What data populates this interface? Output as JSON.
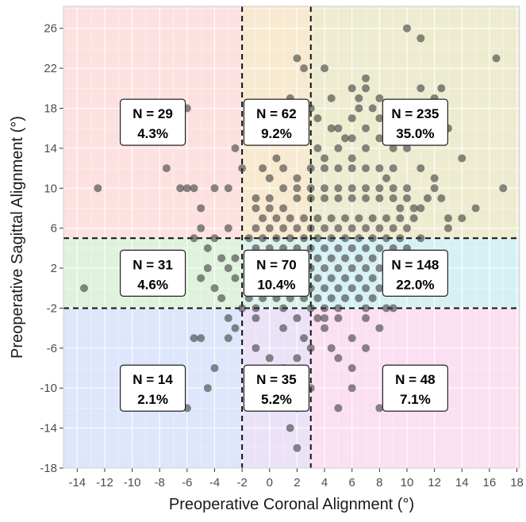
{
  "chart_data": {
    "type": "scatter",
    "title": "",
    "xlabel": "Preoperative Coronal Alignment (°)",
    "ylabel": "Preoperative Sagittal Alignment (°)",
    "xlim": [
      -15,
      18.2
    ],
    "ylim": [
      -18,
      28.2
    ],
    "x_ticks": [
      -14,
      -12,
      -10,
      -8,
      -6,
      -4,
      -2,
      0,
      2,
      4,
      6,
      8,
      10,
      12,
      14,
      16,
      18
    ],
    "y_ticks": [
      -18,
      -14,
      -10,
      -6,
      -2,
      2,
      6,
      10,
      14,
      18,
      22,
      26
    ],
    "grid": true,
    "cutoffs": {
      "x": [
        -2,
        3
      ],
      "y": [
        -2,
        5
      ]
    },
    "regions": [
      {
        "x_range": [
          -15,
          -2
        ],
        "y_range": [
          5,
          28.2
        ],
        "color": "#fde1e1",
        "n_label": "N = 29",
        "pct_label": "4.3%"
      },
      {
        "x_range": [
          -2,
          3
        ],
        "y_range": [
          5,
          28.2
        ],
        "color": "#f8ead0",
        "n_label": "N = 62",
        "pct_label": "9.2%"
      },
      {
        "x_range": [
          3,
          18.2
        ],
        "y_range": [
          5,
          28.2
        ],
        "color": "#eeecd0",
        "n_label": "N = 235",
        "pct_label": "35.0%"
      },
      {
        "x_range": [
          -15,
          -2
        ],
        "y_range": [
          -2,
          5
        ],
        "color": "#dff3dc",
        "n_label": "N = 31",
        "pct_label": "4.6%"
      },
      {
        "x_range": [
          -2,
          3
        ],
        "y_range": [
          -2,
          5
        ],
        "color": "#dcf2ea",
        "n_label": "N = 70",
        "pct_label": "10.4%"
      },
      {
        "x_range": [
          3,
          18.2
        ],
        "y_range": [
          -2,
          5
        ],
        "color": "#d6f1f4",
        "n_label": "N = 148",
        "pct_label": "22.0%"
      },
      {
        "x_range": [
          -15,
          -2
        ],
        "y_range": [
          -18,
          -2
        ],
        "color": "#dde6fa",
        "n_label": "N = 14",
        "pct_label": "2.1%"
      },
      {
        "x_range": [
          -2,
          3
        ],
        "y_range": [
          -18,
          -2
        ],
        "color": "#ebe2f8",
        "n_label": "N = 35",
        "pct_label": "5.2%"
      },
      {
        "x_range": [
          3,
          18.2
        ],
        "y_range": [
          -18,
          -2
        ],
        "color": "#fbe0f1",
        "n_label": "N = 48",
        "pct_label": "7.1%"
      }
    ],
    "point_color": "#3a3a3a",
    "points": [
      [
        -13.5,
        0
      ],
      [
        -12.5,
        10
      ],
      [
        -7.5,
        12
      ],
      [
        -6,
        18
      ],
      [
        -6,
        -12
      ],
      [
        -5.5,
        -5
      ],
      [
        -5,
        -5
      ],
      [
        -4.5,
        -10
      ],
      [
        -4,
        -8
      ],
      [
        -6.5,
        10
      ],
      [
        -6,
        10
      ],
      [
        -5.5,
        10
      ],
      [
        -5,
        8
      ],
      [
        -4,
        10
      ],
      [
        -3,
        10
      ],
      [
        -2.5,
        14
      ],
      [
        -1.5,
        17
      ],
      [
        -2,
        12
      ],
      [
        -3,
        6
      ],
      [
        -5.5,
        5
      ],
      [
        -5,
        6
      ],
      [
        -4.5,
        4
      ],
      [
        -4,
        5
      ],
      [
        -3.5,
        3
      ],
      [
        -3,
        2
      ],
      [
        -2.5,
        1
      ],
      [
        -4,
        0
      ],
      [
        -3.5,
        -1
      ],
      [
        -5,
        1
      ],
      [
        -4.5,
        2
      ],
      [
        -3,
        -3
      ],
      [
        -2.5,
        -4
      ],
      [
        -3,
        -5
      ],
      [
        -2.5,
        3
      ],
      [
        -2,
        -2
      ],
      [
        -1,
        -3
      ],
      [
        -1,
        -6
      ],
      [
        0,
        -7
      ],
      [
        0,
        -9
      ],
      [
        1,
        -8
      ],
      [
        1.5,
        -10
      ],
      [
        2,
        -12
      ],
      [
        1.5,
        -14
      ],
      [
        2,
        -16
      ],
      [
        3,
        -10
      ],
      [
        2,
        -7
      ],
      [
        1,
        -4
      ],
      [
        2,
        -3
      ],
      [
        2.5,
        -5
      ],
      [
        3,
        -6
      ],
      [
        4,
        -4
      ],
      [
        4.5,
        -6
      ],
      [
        5,
        -7
      ],
      [
        6,
        -5
      ],
      [
        7,
        -3
      ],
      [
        8,
        -4
      ],
      [
        9,
        -9
      ],
      [
        8,
        -12
      ],
      [
        5,
        -12
      ],
      [
        6,
        -10
      ],
      [
        6,
        -8
      ],
      [
        7,
        -6
      ],
      [
        5,
        -3
      ],
      [
        4,
        -2
      ],
      [
        4,
        -3
      ],
      [
        3.5,
        -3
      ],
      [
        2,
        23
      ],
      [
        2.5,
        22
      ],
      [
        4,
        22
      ],
      [
        4.5,
        19
      ],
      [
        3.5,
        17
      ],
      [
        2,
        16
      ],
      [
        1.5,
        19
      ],
      [
        0,
        16
      ],
      [
        -0.5,
        15
      ],
      [
        7,
        21
      ],
      [
        7,
        20
      ],
      [
        6.5,
        19
      ],
      [
        6,
        17
      ],
      [
        7.5,
        18
      ],
      [
        8,
        19
      ],
      [
        9,
        17
      ],
      [
        10,
        18
      ],
      [
        10,
        26
      ],
      [
        11,
        25
      ],
      [
        11,
        20
      ],
      [
        12,
        19
      ],
      [
        12.5,
        20
      ],
      [
        13,
        16
      ],
      [
        14,
        13
      ],
      [
        16.5,
        23
      ],
      [
        17,
        10
      ],
      [
        15,
        8
      ],
      [
        14,
        7
      ],
      [
        13,
        6
      ],
      [
        11,
        5
      ],
      [
        11.5,
        9
      ],
      [
        12,
        10
      ],
      [
        12.5,
        9
      ],
      [
        13,
        7
      ],
      [
        10,
        14
      ],
      [
        9,
        14
      ],
      [
        8,
        15
      ],
      [
        7,
        16
      ],
      [
        5.5,
        15
      ],
      [
        5,
        14
      ],
      [
        4,
        13
      ],
      [
        4.5,
        16
      ],
      [
        6,
        15
      ],
      [
        7,
        14
      ],
      [
        8,
        12
      ],
      [
        9,
        12
      ],
      [
        7,
        12
      ],
      [
        6,
        12
      ],
      [
        5,
        12
      ],
      [
        4,
        12
      ],
      [
        3,
        12
      ],
      [
        0,
        11
      ],
      [
        1,
        12
      ],
      [
        2,
        11
      ],
      [
        -1,
        9
      ],
      [
        0,
        9
      ],
      [
        1,
        10
      ],
      [
        2,
        10
      ],
      [
        3,
        10
      ],
      [
        4,
        10
      ],
      [
        5,
        10
      ],
      [
        6,
        10
      ],
      [
        7,
        10
      ],
      [
        8,
        10
      ],
      [
        9,
        10
      ],
      [
        10,
        10
      ],
      [
        -1,
        8
      ],
      [
        0,
        8
      ],
      [
        1,
        8
      ],
      [
        2,
        9
      ],
      [
        3,
        9
      ],
      [
        4,
        9
      ],
      [
        5,
        9
      ],
      [
        6,
        9
      ],
      [
        7,
        9
      ],
      [
        8,
        9
      ],
      [
        9,
        9
      ],
      [
        10,
        9
      ],
      [
        -0.5,
        7
      ],
      [
        0.5,
        7
      ],
      [
        1.5,
        7
      ],
      [
        2.5,
        7
      ],
      [
        3.5,
        7
      ],
      [
        4.5,
        7
      ],
      [
        5.5,
        7
      ],
      [
        6.5,
        7
      ],
      [
        7.5,
        7
      ],
      [
        8.5,
        7
      ],
      [
        9.5,
        7
      ],
      [
        10.5,
        7
      ],
      [
        -1,
        6
      ],
      [
        0,
        6
      ],
      [
        1,
        6
      ],
      [
        2,
        6
      ],
      [
        3,
        6
      ],
      [
        4,
        6
      ],
      [
        5,
        6
      ],
      [
        6,
        6
      ],
      [
        7,
        6
      ],
      [
        8,
        6
      ],
      [
        9,
        6
      ],
      [
        10,
        6
      ],
      [
        -1.5,
        5
      ],
      [
        -0.5,
        5
      ],
      [
        0.5,
        5
      ],
      [
        1.5,
        5
      ],
      [
        2.5,
        5
      ],
      [
        3.5,
        5
      ],
      [
        4.5,
        5
      ],
      [
        5.5,
        5
      ],
      [
        6.5,
        5
      ],
      [
        7.5,
        5
      ],
      [
        8.5,
        5
      ],
      [
        9.5,
        5
      ],
      [
        -1,
        4
      ],
      [
        0,
        4
      ],
      [
        1,
        4
      ],
      [
        2,
        4
      ],
      [
        3,
        4
      ],
      [
        4,
        4
      ],
      [
        5,
        4
      ],
      [
        6,
        4
      ],
      [
        7,
        4
      ],
      [
        8,
        4
      ],
      [
        9,
        4
      ],
      [
        10,
        4
      ],
      [
        -1.5,
        3
      ],
      [
        -0.5,
        3
      ],
      [
        0.5,
        3
      ],
      [
        1.5,
        3
      ],
      [
        2.5,
        3
      ],
      [
        3.5,
        3
      ],
      [
        4.5,
        3
      ],
      [
        5.5,
        3
      ],
      [
        6.5,
        3
      ],
      [
        7.5,
        3
      ],
      [
        8.5,
        3
      ],
      [
        -1,
        2
      ],
      [
        0,
        2
      ],
      [
        1,
        2
      ],
      [
        2,
        2
      ],
      [
        3,
        2
      ],
      [
        4,
        2
      ],
      [
        5,
        2
      ],
      [
        6,
        2
      ],
      [
        7,
        2
      ],
      [
        8,
        2
      ],
      [
        9,
        2
      ],
      [
        -1.5,
        1
      ],
      [
        -0.5,
        1
      ],
      [
        0.5,
        1
      ],
      [
        1.5,
        1
      ],
      [
        2.5,
        1
      ],
      [
        3.5,
        1
      ],
      [
        4.5,
        1
      ],
      [
        5.5,
        1
      ],
      [
        6.5,
        1
      ],
      [
        7.5,
        1
      ],
      [
        8.5,
        1
      ],
      [
        -1,
        0
      ],
      [
        0,
        0
      ],
      [
        1,
        0
      ],
      [
        2,
        0
      ],
      [
        3,
        0
      ],
      [
        4,
        0
      ],
      [
        5,
        0
      ],
      [
        6,
        0
      ],
      [
        7,
        0
      ],
      [
        8,
        0
      ],
      [
        9,
        0
      ],
      [
        -1.5,
        -1
      ],
      [
        -0.5,
        -1
      ],
      [
        0.5,
        -1
      ],
      [
        1.5,
        -1
      ],
      [
        2.5,
        -1
      ],
      [
        3.5,
        -1
      ],
      [
        4.5,
        -1
      ],
      [
        5.5,
        -1
      ],
      [
        6.5,
        -1
      ],
      [
        7.5,
        -1
      ],
      [
        8.5,
        -2
      ],
      [
        9,
        -2
      ],
      [
        -1,
        -2
      ],
      [
        1,
        -2
      ],
      [
        3,
        -2
      ],
      [
        5,
        -2
      ],
      [
        7,
        -2
      ],
      [
        6,
        13
      ],
      [
        8.5,
        11
      ],
      [
        9.5,
        8
      ],
      [
        10.5,
        8
      ],
      [
        11,
        8
      ],
      [
        3.5,
        14
      ],
      [
        5,
        16
      ],
      [
        1,
        15
      ],
      [
        0.5,
        13
      ],
      [
        -0.5,
        12
      ],
      [
        6.5,
        18
      ],
      [
        8,
        17
      ],
      [
        9,
        16
      ],
      [
        3,
        18
      ],
      [
        6,
        20
      ],
      [
        12,
        11
      ],
      [
        11,
        12
      ]
    ]
  }
}
